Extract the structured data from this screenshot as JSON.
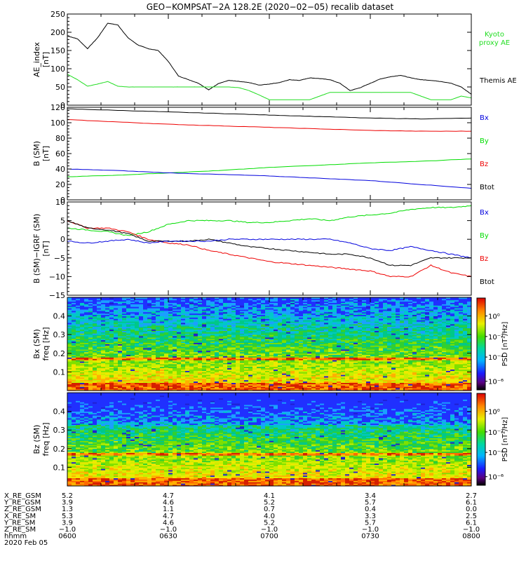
{
  "title": "GEO−KOMPSAT−2A 128.2E (2020−02−05) recalib dataset",
  "colors": {
    "black": "#000000",
    "green": "#00dd00",
    "red": "#ee0000",
    "blue": "#0000dd",
    "kyoto": "#22dd22"
  },
  "panels": [
    {
      "id": "ae",
      "type": "line",
      "ylabel_lines": [
        "AE_index",
        "[nT]"
      ],
      "ylim": [
        0,
        250
      ],
      "yticks": [
        0,
        50,
        100,
        150,
        200,
        250
      ],
      "legend": [
        {
          "text": "Kyoto",
          "color": "#22dd22"
        },
        {
          "text": "proxy AE",
          "color": "#22dd22"
        },
        {
          "text": "Themis AE",
          "color": "#000000"
        }
      ]
    },
    {
      "id": "b",
      "type": "line",
      "ylabel_lines": [
        "B (SM)",
        "[nT]"
      ],
      "ylim": [
        0,
        120
      ],
      "yticks": [
        0,
        20,
        40,
        60,
        80,
        100,
        120
      ],
      "legend": [
        {
          "text": "Bx",
          "color": "#0000dd"
        },
        {
          "text": "By",
          "color": "#00dd00"
        },
        {
          "text": "Bz",
          "color": "#ee0000"
        },
        {
          "text": "Btot",
          "color": "#000000"
        }
      ]
    },
    {
      "id": "db",
      "type": "line",
      "ylabel_lines": [
        "B (SM)−IGRF (SM)",
        "[nT]"
      ],
      "ylim": [
        -15,
        10
      ],
      "yticks": [
        -15,
        -10,
        -5,
        0,
        5,
        10
      ],
      "legend": [
        {
          "text": "Bx",
          "color": "#0000dd"
        },
        {
          "text": "By",
          "color": "#00dd00"
        },
        {
          "text": "Bz",
          "color": "#ee0000"
        },
        {
          "text": "Btot",
          "color": "#000000"
        }
      ]
    },
    {
      "id": "specx",
      "type": "heatmap",
      "ylabel_lines": [
        "Bx (SM)",
        "freq [Hz]"
      ],
      "ylim": [
        0,
        0.5
      ],
      "yticks": [
        0.1,
        0.2,
        0.3,
        0.4
      ],
      "colorbar_label": "PSD [nT²/Hz]",
      "colorbar_ticks": [
        "10⁰",
        "10⁻²",
        "10⁻⁴",
        "10⁻⁶"
      ]
    },
    {
      "id": "specz",
      "type": "heatmap",
      "ylabel_lines": [
        "Bz (SM)",
        "freq [Hz]"
      ],
      "ylim": [
        0,
        0.5
      ],
      "yticks": [
        0.1,
        0.2,
        0.3,
        0.4
      ],
      "colorbar_label": "PSD [nT²/Hz]",
      "colorbar_ticks": [
        "10⁰",
        "10⁻²",
        "10⁻⁴",
        "10⁻⁶"
      ]
    }
  ],
  "chart_data": {
    "type": "line",
    "x_unit": "hours UT",
    "xlim": [
      6.0,
      8.0
    ],
    "panels": {
      "ae": [
        {
          "name": "Themis AE",
          "color": "#000000",
          "x": [
            6.0,
            6.05,
            6.1,
            6.15,
            6.2,
            6.25,
            6.3,
            6.35,
            6.4,
            6.45,
            6.5,
            6.55,
            6.6,
            6.65,
            6.7,
            6.75,
            6.8,
            6.85,
            6.9,
            6.95,
            7.0,
            7.05,
            7.1,
            7.15,
            7.2,
            7.25,
            7.3,
            7.35,
            7.4,
            7.45,
            7.5,
            7.55,
            7.6,
            7.65,
            7.7,
            7.75,
            7.8,
            7.85,
            7.9,
            7.95,
            8.0
          ],
          "y": [
            190,
            182,
            155,
            185,
            225,
            220,
            185,
            165,
            155,
            150,
            120,
            80,
            70,
            60,
            42,
            60,
            68,
            65,
            62,
            55,
            58,
            62,
            70,
            68,
            75,
            73,
            70,
            60,
            40,
            48,
            60,
            72,
            78,
            82,
            75,
            70,
            68,
            65,
            60,
            50,
            30
          ]
        },
        {
          "name": "Kyoto proxy AE",
          "color": "#22dd22",
          "x": [
            6.0,
            6.05,
            6.1,
            6.15,
            6.2,
            6.25,
            6.3,
            6.35,
            6.4,
            6.45,
            6.5,
            6.55,
            6.6,
            6.65,
            6.7,
            6.75,
            6.8,
            6.85,
            6.9,
            6.95,
            7.0,
            7.05,
            7.1,
            7.15,
            7.2,
            7.25,
            7.3,
            7.35,
            7.4,
            7.45,
            7.5,
            7.55,
            7.6,
            7.65,
            7.7,
            7.75,
            7.8,
            7.85,
            7.9,
            7.95,
            8.0
          ],
          "y": [
            85,
            70,
            52,
            58,
            65,
            52,
            50,
            50,
            50,
            50,
            50,
            50,
            50,
            50,
            50,
            50,
            50,
            48,
            40,
            28,
            15,
            15,
            15,
            15,
            15,
            25,
            35,
            35,
            35,
            35,
            35,
            35,
            35,
            35,
            35,
            25,
            15,
            15,
            15,
            25,
            20
          ]
        }
      ],
      "b": [
        {
          "name": "Btot",
          "color": "#000000",
          "x": [
            6.0,
            6.25,
            6.5,
            6.75,
            7.0,
            7.25,
            7.5,
            7.75,
            8.0
          ],
          "y": [
            118,
            116,
            114,
            112,
            110,
            108,
            106,
            105,
            106
          ]
        },
        {
          "name": "Bz",
          "color": "#ee0000",
          "x": [
            6.0,
            6.25,
            6.5,
            6.75,
            7.0,
            7.25,
            7.5,
            7.75,
            8.0
          ],
          "y": [
            104,
            101,
            98,
            96,
            94,
            92,
            90,
            89,
            89
          ]
        },
        {
          "name": "By",
          "color": "#00dd00",
          "x": [
            6.0,
            6.25,
            6.5,
            6.75,
            7.0,
            7.25,
            7.5,
            7.75,
            8.0
          ],
          "y": [
            30,
            32,
            35,
            38,
            42,
            45,
            48,
            50,
            53
          ]
        },
        {
          "name": "Bx",
          "color": "#0000dd",
          "x": [
            6.0,
            6.25,
            6.5,
            6.75,
            7.0,
            7.25,
            7.5,
            7.75,
            8.0
          ],
          "y": [
            40,
            38,
            35,
            33,
            31,
            28,
            25,
            20,
            15
          ]
        }
      ],
      "db": [
        {
          "name": "By",
          "color": "#00dd00",
          "x": [
            6.0,
            6.1,
            6.2,
            6.3,
            6.4,
            6.5,
            6.6,
            6.7,
            6.8,
            6.9,
            7.0,
            7.1,
            7.2,
            7.3,
            7.4,
            7.5,
            7.6,
            7.7,
            7.8,
            7.9,
            8.0
          ],
          "y": [
            3,
            2.5,
            2,
            1,
            2,
            4,
            5,
            5,
            5,
            4.5,
            4.5,
            5,
            5.5,
            5,
            6,
            6.5,
            7,
            8,
            8.5,
            8.5,
            9
          ]
        },
        {
          "name": "Bz",
          "color": "#ee0000",
          "x": [
            6.0,
            6.1,
            6.2,
            6.3,
            6.4,
            6.5,
            6.6,
            6.7,
            6.8,
            6.9,
            7.0,
            7.1,
            7.2,
            7.3,
            7.4,
            7.5,
            7.6,
            7.7,
            7.8,
            7.9,
            8.0
          ],
          "y": [
            5,
            3,
            3,
            2,
            0,
            -1,
            -1.5,
            -3,
            -4,
            -5,
            -6,
            -6.5,
            -7,
            -7.5,
            -8,
            -8.5,
            -10,
            -10,
            -7,
            -9,
            -10
          ]
        },
        {
          "name": "Btot",
          "color": "#000000",
          "x": [
            6.0,
            6.1,
            6.2,
            6.3,
            6.4,
            6.5,
            6.6,
            6.7,
            6.8,
            6.9,
            7.0,
            7.1,
            7.2,
            7.3,
            7.4,
            7.5,
            7.6,
            7.7,
            7.8,
            7.9,
            8.0
          ],
          "y": [
            5,
            3,
            2.5,
            1.5,
            -0.5,
            -0.5,
            -0.5,
            0,
            -1,
            -2,
            -2.5,
            -3,
            -3.5,
            -4,
            -4,
            -5,
            -7,
            -7,
            -5,
            -5,
            -5
          ]
        },
        {
          "name": "Bx",
          "color": "#0000dd",
          "x": [
            6.0,
            6.1,
            6.2,
            6.3,
            6.4,
            6.5,
            6.6,
            6.7,
            6.8,
            6.9,
            7.0,
            7.1,
            7.2,
            7.3,
            7.4,
            7.5,
            7.6,
            7.7,
            7.8,
            7.9,
            8.0
          ],
          "y": [
            -0.5,
            -1,
            -0.5,
            0,
            -1,
            -0.5,
            -0.5,
            -0.5,
            0,
            0,
            0,
            0,
            0,
            0,
            -1,
            -2.5,
            -3,
            -2,
            -3,
            -4,
            -5
          ]
        }
      ]
    },
    "spectrograms": {
      "specx": {
        "freq_range": [
          0,
          0.5
        ],
        "note": "dense power spectral density; strong band near 0.17 Hz"
      },
      "specz": {
        "freq_range": [
          0,
          0.5
        ],
        "note": "dense power spectral density; strong band near 0.17 Hz"
      }
    }
  },
  "ephemeris": {
    "rows": [
      {
        "label": "X_RE_GSM",
        "values": [
          "5.2",
          "4.7",
          "4.1",
          "3.4",
          "2.7"
        ]
      },
      {
        "label": "Y_RE_GSM",
        "values": [
          "3.9",
          "4.6",
          "5.2",
          "5.7",
          "6.1"
        ]
      },
      {
        "label": "Z_RE_GSM",
        "values": [
          "1.3",
          "1.1",
          "0.7",
          "0.4",
          "0.0"
        ]
      },
      {
        "label": "X_RE_SM",
        "values": [
          "5.3",
          "4.7",
          "4.0",
          "3.3",
          "2.5"
        ]
      },
      {
        "label": "Y_RE_SM",
        "values": [
          "3.9",
          "4.6",
          "5.2",
          "5.7",
          "6.1"
        ]
      },
      {
        "label": "Z_RE_SM",
        "values": [
          "−1.0",
          "−1.0",
          "−1.0",
          "−1.0",
          "−1.0"
        ]
      },
      {
        "label": "hhmm",
        "values": [
          "0600",
          "0630",
          "0700",
          "0730",
          "0800"
        ]
      }
    ],
    "date": "2020 Feb 05"
  }
}
